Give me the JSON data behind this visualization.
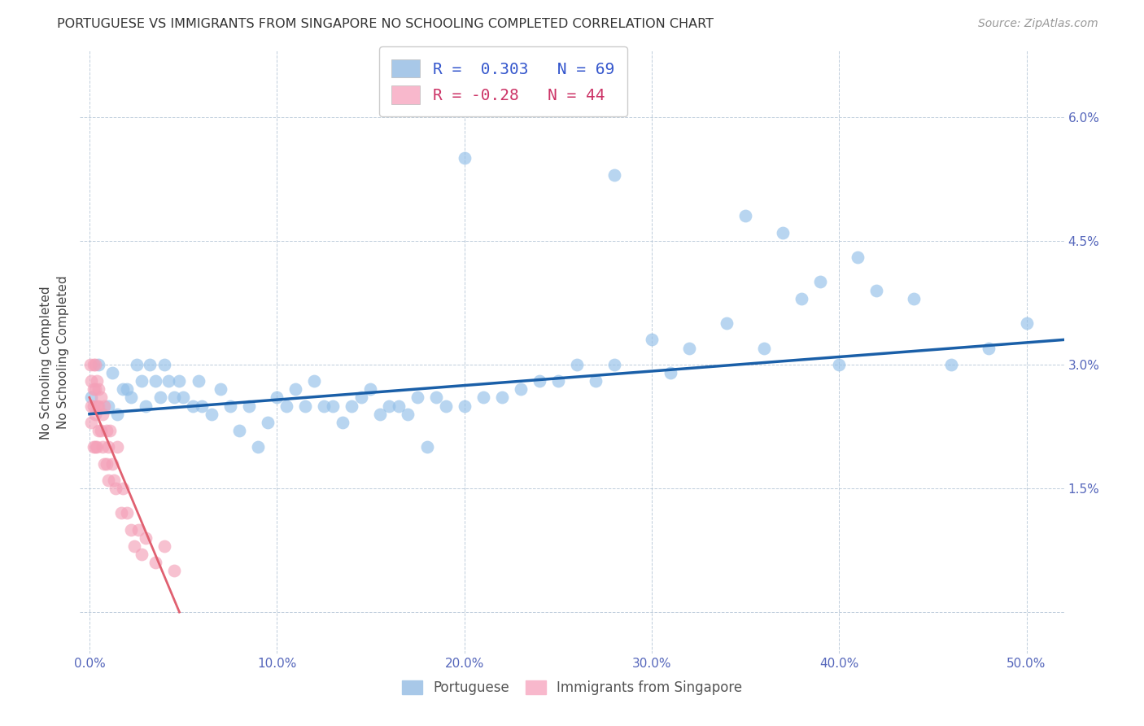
{
  "title": "PORTUGUESE VS IMMIGRANTS FROM SINGAPORE NO SCHOOLING COMPLETED CORRELATION CHART",
  "source": "Source: ZipAtlas.com",
  "ylabel": "No Schooling Completed",
  "x_ticks": [
    0.0,
    0.1,
    0.2,
    0.3,
    0.4,
    0.5
  ],
  "x_tick_labels": [
    "0.0%",
    "10.0%",
    "20.0%",
    "30.0%",
    "40.0%",
    "50.0%"
  ],
  "y_ticks": [
    0.0,
    0.015,
    0.03,
    0.045,
    0.06
  ],
  "y_tick_labels_right": [
    "",
    "1.5%",
    "3.0%",
    "4.5%",
    "6.0%"
  ],
  "xlim": [
    -0.005,
    0.52
  ],
  "ylim": [
    -0.005,
    0.068
  ],
  "R_blue": 0.303,
  "N_blue": 69,
  "R_pink": -0.28,
  "N_pink": 44,
  "blue_color": "#92bfe8",
  "pink_color": "#f4a0b8",
  "blue_line_color": "#1a5fa8",
  "pink_line_color": "#e06070",
  "blue_scatter_x": [
    0.001,
    0.005,
    0.01,
    0.012,
    0.015,
    0.018,
    0.02,
    0.022,
    0.025,
    0.028,
    0.03,
    0.032,
    0.035,
    0.038,
    0.04,
    0.042,
    0.045,
    0.048,
    0.05,
    0.055,
    0.058,
    0.06,
    0.065,
    0.07,
    0.075,
    0.08,
    0.085,
    0.09,
    0.095,
    0.1,
    0.105,
    0.11,
    0.115,
    0.12,
    0.125,
    0.13,
    0.135,
    0.14,
    0.145,
    0.15,
    0.155,
    0.16,
    0.165,
    0.17,
    0.175,
    0.18,
    0.185,
    0.19,
    0.2,
    0.21,
    0.22,
    0.23,
    0.24,
    0.25,
    0.26,
    0.27,
    0.28,
    0.3,
    0.31,
    0.32,
    0.34,
    0.36,
    0.38,
    0.4,
    0.42,
    0.44,
    0.46,
    0.48,
    0.5
  ],
  "blue_scatter_y": [
    0.026,
    0.03,
    0.025,
    0.029,
    0.024,
    0.027,
    0.027,
    0.026,
    0.03,
    0.028,
    0.025,
    0.03,
    0.028,
    0.026,
    0.03,
    0.028,
    0.026,
    0.028,
    0.026,
    0.025,
    0.028,
    0.025,
    0.024,
    0.027,
    0.025,
    0.022,
    0.025,
    0.02,
    0.023,
    0.026,
    0.025,
    0.027,
    0.025,
    0.028,
    0.025,
    0.025,
    0.023,
    0.025,
    0.026,
    0.027,
    0.024,
    0.025,
    0.025,
    0.024,
    0.026,
    0.02,
    0.026,
    0.025,
    0.025,
    0.026,
    0.026,
    0.027,
    0.028,
    0.028,
    0.03,
    0.028,
    0.03,
    0.033,
    0.029,
    0.032,
    0.035,
    0.032,
    0.038,
    0.03,
    0.039,
    0.038,
    0.03,
    0.032,
    0.035
  ],
  "pink_scatter_x": [
    0.0005,
    0.001,
    0.001,
    0.001,
    0.002,
    0.002,
    0.002,
    0.002,
    0.003,
    0.003,
    0.003,
    0.003,
    0.004,
    0.004,
    0.004,
    0.005,
    0.005,
    0.005,
    0.006,
    0.006,
    0.007,
    0.007,
    0.008,
    0.008,
    0.009,
    0.009,
    0.01,
    0.01,
    0.011,
    0.012,
    0.013,
    0.014,
    0.015,
    0.017,
    0.018,
    0.02,
    0.022,
    0.024,
    0.026,
    0.028,
    0.03,
    0.035,
    0.04,
    0.045
  ],
  "pink_scatter_y": [
    0.03,
    0.028,
    0.025,
    0.023,
    0.03,
    0.027,
    0.025,
    0.02,
    0.03,
    0.027,
    0.024,
    0.02,
    0.028,
    0.025,
    0.02,
    0.027,
    0.025,
    0.022,
    0.026,
    0.022,
    0.024,
    0.02,
    0.025,
    0.018,
    0.022,
    0.018,
    0.02,
    0.016,
    0.022,
    0.018,
    0.016,
    0.015,
    0.02,
    0.012,
    0.015,
    0.012,
    0.01,
    0.008,
    0.01,
    0.007,
    0.009,
    0.006,
    0.008,
    0.005
  ],
  "blue_outliers_x": [
    0.2,
    0.28,
    0.35,
    0.37,
    0.39,
    0.41
  ],
  "blue_outliers_y": [
    0.055,
    0.053,
    0.048,
    0.046,
    0.04,
    0.043
  ],
  "blue_line_x0": 0.0,
  "blue_line_x1": 0.52,
  "blue_line_y0": 0.024,
  "blue_line_y1": 0.033,
  "pink_line_x0": 0.0,
  "pink_line_x1": 0.048,
  "pink_line_y0": 0.026,
  "pink_line_y1": 0.0
}
